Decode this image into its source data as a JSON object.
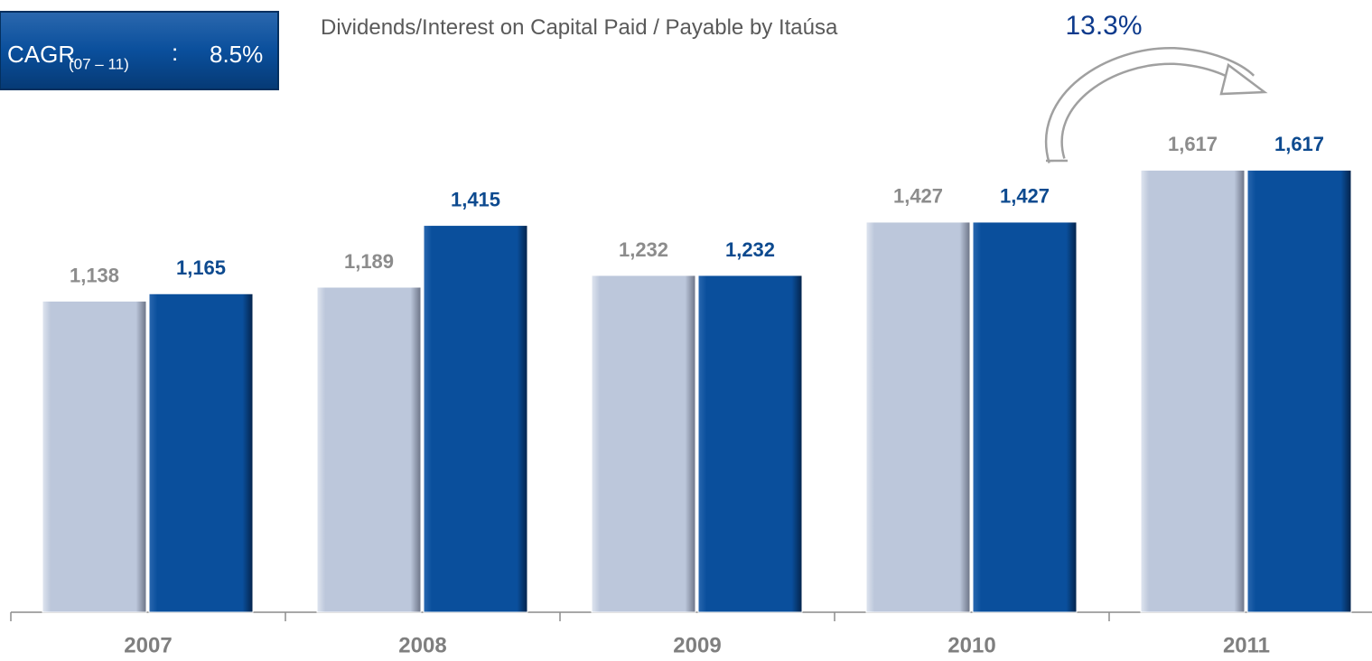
{
  "chart_data": {
    "type": "bar",
    "title": "Dividends/Interest on Capital Paid / Payable by Itaúsa",
    "cagr": {
      "label": "CAGR",
      "period": "(07 – 11)",
      "separator": ":",
      "value": "8.5%"
    },
    "annotation": "13.3%",
    "categories": [
      "2007",
      "2008",
      "2009",
      "2010",
      "2011"
    ],
    "series": [
      {
        "color": "#bcc7db",
        "values": [
          1138,
          1189,
          1232,
          1427,
          1617
        ],
        "value_labels": [
          "1,138",
          "1,189",
          "1,232",
          "1,427",
          "1,617"
        ],
        "label_color": "#8c8c8c"
      },
      {
        "color": "#0a4f9c",
        "values": [
          1165,
          1415,
          1232,
          1427,
          1617
        ],
        "value_labels": [
          "1,165",
          "1,415",
          "1,232",
          "1,427",
          "1,617"
        ],
        "label_color": "#0d4a8f"
      }
    ],
    "ylim": [
      0,
      1800
    ]
  }
}
